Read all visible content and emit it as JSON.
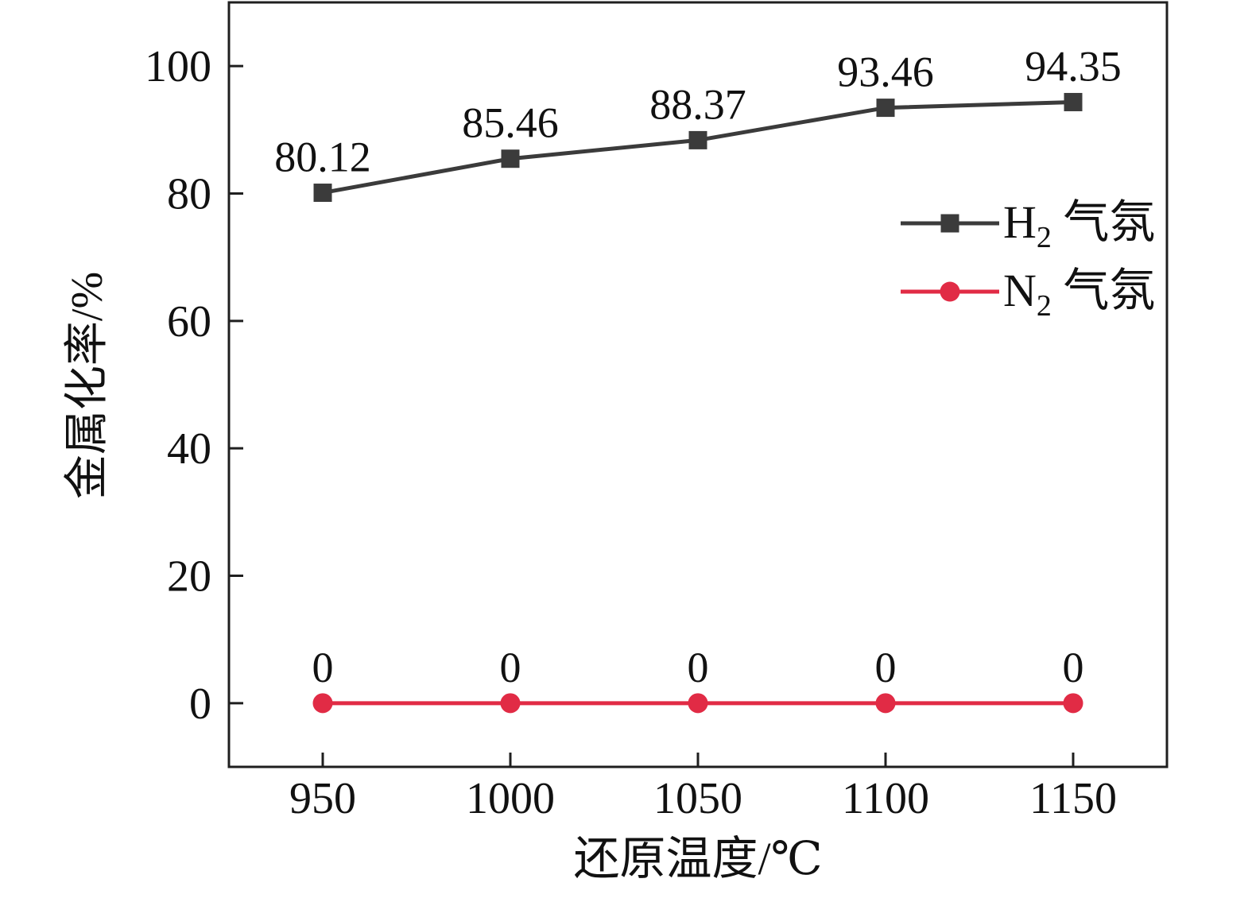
{
  "chart_data": {
    "type": "line",
    "title": "",
    "xlabel": "还原温度/℃",
    "ylabel": "金属化率/%",
    "x": [
      950,
      1000,
      1050,
      1100,
      1150
    ],
    "x_tick_labels": [
      "950",
      "1000",
      "1050",
      "1100",
      "1150"
    ],
    "y_tick_values": [
      0,
      20,
      40,
      60,
      80,
      100
    ],
    "y_tick_labels": [
      "0",
      "20",
      "40",
      "60",
      "80",
      "100"
    ],
    "xlim": [
      925,
      1175
    ],
    "ylim": [
      -10,
      110
    ],
    "grid": false,
    "series": [
      {
        "name": "H2 气氛",
        "marker": "square",
        "color": "#3b3b3b",
        "values": [
          80.12,
          85.46,
          88.37,
          93.46,
          94.35
        ],
        "point_labels": [
          "80.12",
          "85.46",
          "88.37",
          "93.46",
          "94.35"
        ]
      },
      {
        "name": "N2 气氛",
        "marker": "circle",
        "color": "#e12b45",
        "values": [
          0,
          0,
          0,
          0,
          0
        ],
        "point_labels": [
          "0",
          "0",
          "0",
          "0",
          "0"
        ]
      }
    ],
    "legend": {
      "position": "center-right",
      "entries": [
        {
          "base": "H",
          "subscript": "2",
          "suffix": " 气氛",
          "color": "#3b3b3b",
          "marker": "square"
        },
        {
          "base": "N",
          "subscript": "2",
          "suffix": " 气氛",
          "color": "#e12b45",
          "marker": "circle"
        }
      ]
    },
    "colors": {
      "axis": "#1f1f1f",
      "text": "#111111",
      "background": "#ffffff"
    }
  }
}
